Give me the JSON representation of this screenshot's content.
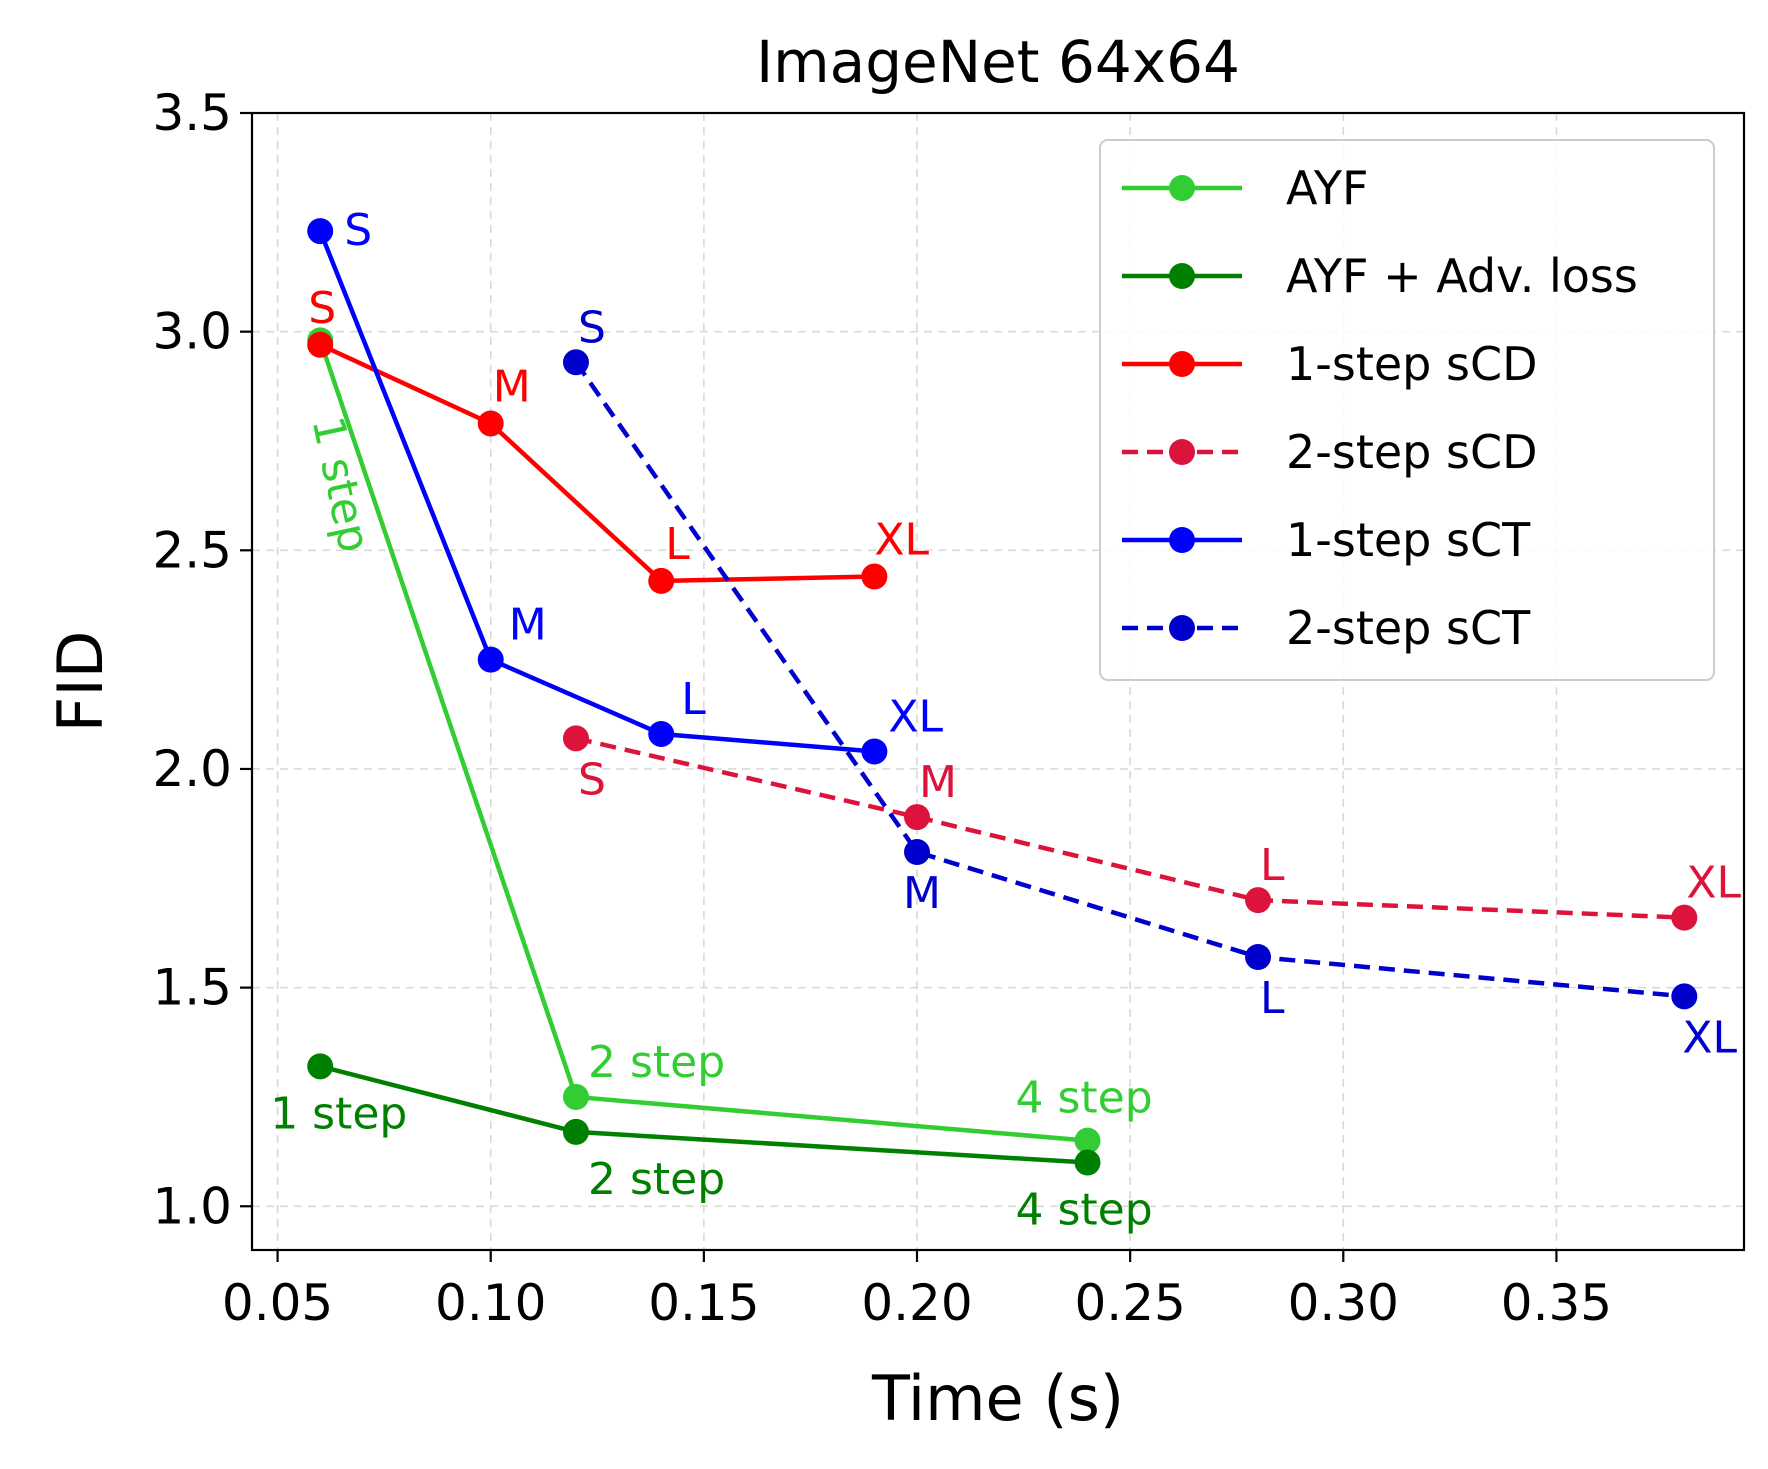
{
  "chart_data": {
    "type": "line",
    "title": "ImageNet 64x64",
    "xlabel": "Time (s)",
    "ylabel": "FID",
    "xlim": [
      0.044,
      0.394
    ],
    "ylim": [
      0.9,
      3.5
    ],
    "xticks": [
      0.05,
      0.1,
      0.15,
      0.2,
      0.25,
      0.3,
      0.35
    ],
    "xtick_labels": [
      "0.05",
      "0.10",
      "0.15",
      "0.20",
      "0.25",
      "0.30",
      "0.35"
    ],
    "yticks": [
      1.0,
      1.5,
      2.0,
      2.5,
      3.0,
      3.5
    ],
    "ytick_labels": [
      "1.0",
      "1.5",
      "2.0",
      "2.5",
      "3.0",
      "3.5"
    ],
    "grid": true,
    "legend_position": "top-right",
    "series": [
      {
        "name": "AYF",
        "color": "#32cd32",
        "dash": "solid",
        "x": [
          0.06,
          0.12,
          0.24
        ],
        "y": [
          2.98,
          1.25,
          1.15
        ],
        "labels": [
          "1 step",
          "2 step",
          "4 step"
        ]
      },
      {
        "name": "AYF + Adv. loss",
        "color": "#008000",
        "dash": "solid",
        "x": [
          0.06,
          0.12,
          0.24
        ],
        "y": [
          1.32,
          1.17,
          1.1
        ],
        "labels": [
          "1 step",
          "2 step",
          "4 step"
        ]
      },
      {
        "name": "1-step sCD",
        "color": "#ff0000",
        "dash": "solid",
        "x": [
          0.06,
          0.1,
          0.14,
          0.19
        ],
        "y": [
          2.97,
          2.79,
          2.43,
          2.44
        ],
        "labels": [
          "S",
          "M",
          "L",
          "XL"
        ]
      },
      {
        "name": "2-step sCD",
        "color": "#dc143c",
        "dash": "dashed",
        "x": [
          0.12,
          0.2,
          0.28,
          0.38
        ],
        "y": [
          2.07,
          1.89,
          1.7,
          1.66
        ],
        "labels": [
          "S",
          "M",
          "L",
          "XL"
        ]
      },
      {
        "name": "1-step sCT",
        "color": "#0000ff",
        "dash": "solid",
        "x": [
          0.06,
          0.1,
          0.14,
          0.19
        ],
        "y": [
          3.23,
          2.25,
          2.08,
          2.04
        ],
        "labels": [
          "S",
          "M",
          "L",
          "XL"
        ]
      },
      {
        "name": "2-step sCT",
        "color": "#0000cd",
        "dash": "dashed",
        "x": [
          0.12,
          0.2,
          0.28,
          0.38
        ],
        "y": [
          2.93,
          1.81,
          1.57,
          1.48
        ],
        "labels": [
          "S",
          "M",
          "L",
          "XL"
        ]
      }
    ]
  }
}
